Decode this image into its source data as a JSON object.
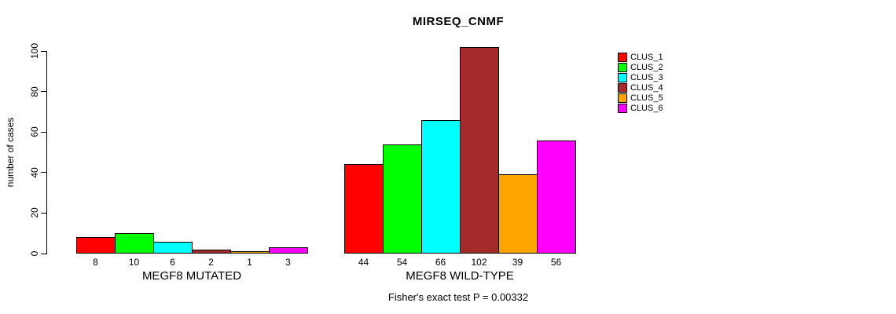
{
  "chart_data": {
    "type": "bar",
    "title": "MIRSEQ_CNMF",
    "ylabel": "number of cases",
    "ylim": [
      0,
      100
    ],
    "yticks": [
      0,
      20,
      40,
      60,
      80,
      100
    ],
    "grid": false,
    "legend_position": "right",
    "series_names": [
      "CLUS_1",
      "CLUS_2",
      "CLUS_3",
      "CLUS_4",
      "CLUS_5",
      "CLUS_6"
    ],
    "colors": [
      "#ff0000",
      "#00ff00",
      "#00ffff",
      "#a52a2a",
      "#ffa500",
      "#ff00ff"
    ],
    "bar_border_color": "#000000",
    "groups": [
      {
        "label": "MEGF8 MUTATED",
        "values": [
          8,
          10,
          6,
          2,
          1,
          3
        ]
      },
      {
        "label": "MEGF8 WILD-TYPE",
        "values": [
          44,
          54,
          66,
          102,
          39,
          56
        ]
      }
    ],
    "annotation": "Fisher's exact test P = 0.00332"
  }
}
